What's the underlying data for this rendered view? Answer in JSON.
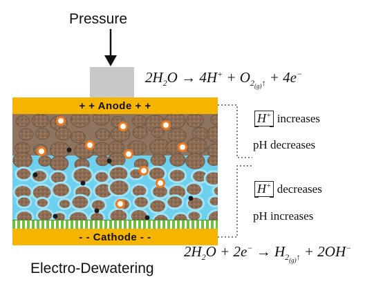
{
  "pressure": {
    "label": "Pressure"
  },
  "electrodes": {
    "anode": "+ + Anode + +",
    "cathode": "- - Cathode - -"
  },
  "equations": {
    "anode": {
      "a": "2H",
      "b": "2",
      "c": "O → 4H",
      "d": "+",
      "e": " + O",
      "f": "2",
      "g": "(g)",
      "h": "↑",
      "i": " + 4e",
      "j": "−"
    },
    "cathode": {
      "a": "2H",
      "b": "2",
      "c": "O + 2e",
      "d": "−",
      "e": " → H",
      "f": "2",
      "g": "(g)",
      "h": "↑",
      "i": " + 2OH",
      "j": "−"
    }
  },
  "notes": {
    "ion": "H",
    "ion_charge": "+",
    "top": {
      "trend": " increases",
      "ph": "pH decreases"
    },
    "bottom": {
      "trend": " decreases",
      "ph": "pH increases"
    }
  },
  "title": "Electro-Dewatering",
  "colors": {
    "electrode": "#f4b400",
    "water": "#6fd0ee",
    "sludge": "#8d6e55",
    "mesh": "#6fbf3a",
    "h_ion": "#f07a20",
    "oh_ion": "#1a1a1a"
  }
}
